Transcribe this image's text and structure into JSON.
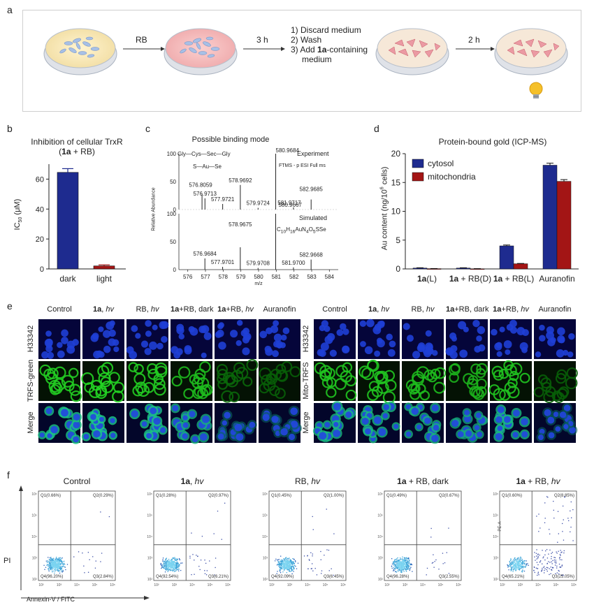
{
  "panel_a": {
    "letter": "a",
    "arrow1": "RB",
    "arrow2": "3 h",
    "steps": [
      "1) Discard medium",
      "2) Wash",
      "3) Add ",
      "1a",
      "-containing",
      "medium"
    ],
    "arrow4": "2 h",
    "colors": {
      "dish_rim": "#a8b4c2",
      "dish_yellow": "#f5e6b8",
      "dish_pink": "#f3b9bb",
      "cells_blue": "#9ab8e0",
      "cells_red": "#e8848f",
      "bulb": "#f5c02a"
    }
  },
  "panel_b": {
    "letter": "b",
    "title_line1": "Inhibition of cellular TrxR",
    "title_line2_pre": "(",
    "title_line2_bold": "1a",
    "title_line2_post": " + RB)",
    "ylabel": "IC50 (μM)",
    "ylabel_main": "IC",
    "ylabel_sub": "50",
    "ylabel_unit": " (μM)"
  },
  "panel_c": {
    "letter": "c",
    "title": "Possible binding mode",
    "ylabel": "Relative Abundance",
    "xlabel": "m/z",
    "experiment": "Experiment",
    "method": "FTMS - p ESI Full ms",
    "simulated": "Simulated",
    "formula": "C10H16AuN4O5SSe",
    "formula_parts": [
      "C",
      "10",
      "H",
      "16",
      "AuN",
      "4",
      "O",
      "5",
      "SSe"
    ],
    "structure_line1": "Gly—Cys—Sec—Gly",
    "structure_line2": "S—Au—Se",
    "exp_peaks": [
      {
        "mz": "576.8059",
        "x": 576.8059,
        "rel": 28
      },
      {
        "mz": "576.9713",
        "x": 576.9713,
        "rel": 20
      },
      {
        "mz": "577.9721",
        "x": 577.9721,
        "rel": 10
      },
      {
        "mz": "578.9692",
        "x": 578.9692,
        "rel": 44
      },
      {
        "mz": "579.9724",
        "x": 579.9724,
        "rel": 3
      },
      {
        "mz": "580.9684",
        "x": 580.9684,
        "rel": 100
      },
      {
        "mz": "581.9717",
        "x": 581.9717,
        "rel": 4
      },
      {
        "mz": "582.9685",
        "x": 582.9685,
        "rel": 18
      }
    ],
    "sim_peaks": [
      {
        "mz": "576.9684",
        "x": 576.9684,
        "rel": 20
      },
      {
        "mz": "577.9701",
        "x": 577.9701,
        "rel": 5
      },
      {
        "mz": "578.9675",
        "x": 578.9675,
        "rel": 40
      },
      {
        "mz": "579.9708",
        "x": 579.9708,
        "rel": 3
      },
      {
        "mz": "580.9667",
        "x": 580.9667,
        "rel": 100
      },
      {
        "mz": "581.9700",
        "x": 581.97,
        "rel": 4
      },
      {
        "mz": "582.9668",
        "x": 582.9668,
        "rel": 18
      }
    ],
    "y_ticks": [
      "100",
      "50",
      "0"
    ],
    "x_ticks": [
      "576",
      "577",
      "578",
      "579",
      "580",
      "581",
      "582",
      "583",
      "584"
    ]
  },
  "panel_d": {
    "letter": "d",
    "title": "Protein-bound gold (ICP-MS)",
    "ylabel_pre": "Au content  (ng/10",
    "ylabel_sup": "6",
    "ylabel_post": " cells)",
    "legend": [
      "cytosol",
      "mitochondria"
    ]
  },
  "panel_e": {
    "letter": "e",
    "columns": [
      "Control",
      "1a, hv",
      "RB, hv",
      "1a+RB, dark",
      "1a+RB, hv",
      "Auranofin"
    ],
    "columns_parts": [
      {
        "b": "",
        "n": "Control",
        "i": ""
      },
      {
        "b": "1a",
        "n": ", ",
        "i": "hv"
      },
      {
        "b": "",
        "n": "RB, ",
        "i": "hv"
      },
      {
        "b": "1a",
        "n": "+RB, dark",
        "i": ""
      },
      {
        "b": "1a",
        "n": "+RB, ",
        "i": "hv"
      },
      {
        "b": "",
        "n": "Auranofin",
        "i": ""
      }
    ],
    "rows_left": [
      "H33342",
      "TRFS-green",
      "Merge"
    ],
    "rows_right": [
      "H33342",
      "Mito-TRFS",
      "Merge"
    ],
    "green_levels_left": [
      0.85,
      0.9,
      0.85,
      0.75,
      0.25,
      0.2
    ],
    "green_levels_right": [
      0.8,
      0.8,
      0.75,
      0.7,
      0.8,
      0.2
    ]
  },
  "panel_f": {
    "letter": "f",
    "ylabel": "PI",
    "xlabel": "Annexin-V / FITC",
    "y_axis_code": "PE-A",
    "plots": [
      {
        "title_b": "",
        "title_n": "Control",
        "title_i": "",
        "q1": "Q1(0.66%)",
        "q2": "Q2(0.29%)",
        "q3": "Q3(2.84%)",
        "q4": "Q4(96.20%)"
      },
      {
        "title_b": "1a",
        "title_n": ", ",
        "title_i": "hv",
        "q1": "Q1(0.28%)",
        "q2": "Q2(0.97%)",
        "q3": "Q3(6.21%)",
        "q4": "Q4(92.54%)"
      },
      {
        "title_b": "",
        "title_n": "RB, ",
        "title_i": "hv",
        "q1": "Q1(0.45%)",
        "q2": "Q2(1.00%)",
        "q3": "Q3(6.45%)",
        "q4": "Q4(92.09%)"
      },
      {
        "title_b": "1a",
        "title_n": " + RB, dark",
        "title_i": "",
        "q1": "Q1(0.49%)",
        "q2": "Q2(0.67%)",
        "q3": "Q3(2.55%)",
        "q4": "Q4(96.28%)"
      },
      {
        "title_b": "1a",
        "title_n": " + RB, ",
        "title_i": "hv",
        "q1": "Q1(0.60%)",
        "q2": "Q2(8.85%)",
        "q3": "Q3(25.05%)",
        "q4": "Q4(65.21%)"
      }
    ],
    "x_ticks": [
      "10²",
      "10³",
      "10⁴",
      "10⁵",
      "10⁶"
    ],
    "y_ticks": [
      "10⁶",
      "10⁵",
      "10⁴",
      "10³",
      "10²"
    ]
  },
  "chart_data": [
    {
      "type": "bar",
      "title": "Inhibition of cellular TrxR (1a + RB)",
      "xlabel": "",
      "ylabel": "IC50 (μM)",
      "categories": [
        "dark",
        "light"
      ],
      "values": [
        64.5,
        2.0
      ],
      "errors": [
        2.5,
        0.7
      ],
      "colors": [
        "#1e2b8f",
        "#a31515"
      ],
      "ylim": [
        0,
        70
      ],
      "yticks": [
        0,
        20,
        40,
        60
      ],
      "grid": false
    },
    {
      "type": "bar",
      "title": "Protein-bound gold (ICP-MS)",
      "xlabel": "",
      "ylabel": "Au content (ng/10^6 cells)",
      "categories": [
        "1a(L)",
        "1a + RB(D)",
        "1a + RB(L)",
        "Auranofin"
      ],
      "categories_parts": [
        {
          "b": "1a",
          "n": "(L)"
        },
        {
          "b": "1a",
          "n": " + RB(D)"
        },
        {
          "b": "1a",
          "n": " + RB(L)"
        },
        {
          "b": "",
          "n": "Auranofin"
        }
      ],
      "series": [
        {
          "name": "cytosol",
          "values": [
            0.15,
            0.15,
            4.0,
            18.0
          ],
          "errors": [
            0.05,
            0.05,
            0.15,
            0.35
          ],
          "color": "#1e2b8f"
        },
        {
          "name": "mitochondria",
          "values": [
            0.05,
            0.03,
            0.9,
            15.2
          ],
          "errors": [
            0.02,
            0.02,
            0.05,
            0.3
          ],
          "color": "#a31515"
        }
      ],
      "ylim": [
        0,
        20
      ],
      "yticks": [
        0,
        5,
        10,
        15,
        20
      ],
      "legend": "top-left",
      "grid": false
    }
  ]
}
